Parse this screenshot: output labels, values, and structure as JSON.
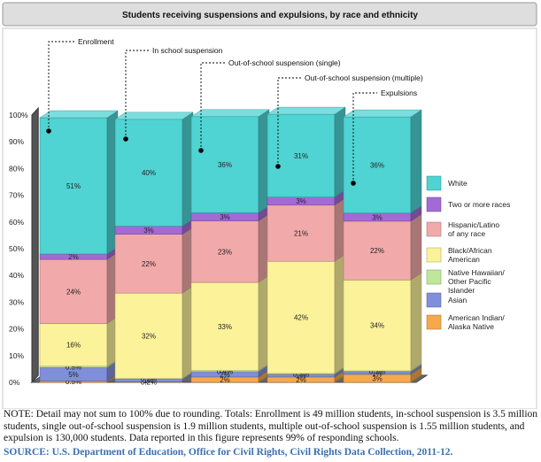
{
  "chart_data": {
    "type": "bar",
    "stacked": true,
    "title": "Students receiving suspensions and expulsions, by race and ethnicity",
    "categories": [
      "Enrollment",
      "In school suspension",
      "Out-of-school suspension (single)",
      "Out-of-school suspension (multiple)",
      "Expulsions"
    ],
    "series": [
      {
        "name": "American Indian/ Alaska Native",
        "color": "#f6a94a",
        "values": [
          0.5,
          0.2,
          2,
          2,
          3
        ],
        "labels": [
          "0.5%",
          "0.2%",
          "2%",
          "2%",
          "3%"
        ]
      },
      {
        "name": "Asian",
        "color": "#7f8fd9",
        "values": [
          5,
          1,
          2,
          1,
          1
        ],
        "labels": [
          "5%",
          "1%",
          "2%",
          "1%",
          "1%"
        ]
      },
      {
        "name": "Native Hawaiian/ Other Pacific Islander",
        "color": "#bfe79a",
        "values": [
          0.5,
          0.2,
          0.4,
          0.3,
          0.3
        ],
        "labels": [
          "0.5%",
          "0.2%",
          "0.4%",
          "0.3%",
          "0.3%"
        ]
      },
      {
        "name": "Black/African American",
        "color": "#fbf29a",
        "values": [
          16,
          32,
          33,
          42,
          34
        ],
        "labels": [
          "16%",
          "32%",
          "33%",
          "42%",
          "34%"
        ]
      },
      {
        "name": "Hispanic/Latino of any race",
        "color": "#f1a9a9",
        "values": [
          24,
          22,
          23,
          21,
          22
        ],
        "labels": [
          "24%",
          "22%",
          "23%",
          "21%",
          "22%"
        ]
      },
      {
        "name": "Two or more races",
        "color": "#a36ad6",
        "values": [
          2,
          3,
          3,
          3,
          3
        ],
        "labels": [
          "2%",
          "3%",
          "3%",
          "3%",
          "3%"
        ]
      },
      {
        "name": "White",
        "color": "#4fd3d3",
        "values": [
          51,
          40,
          36,
          31,
          36
        ],
        "labels": [
          "51%",
          "40%",
          "36%",
          "31%",
          "36%"
        ]
      }
    ],
    "yticks": [
      "0%",
      "10%",
      "20%",
      "30%",
      "40%",
      "50%",
      "60%",
      "70%",
      "80%",
      "90%",
      "100%"
    ],
    "ylim": [
      0,
      100
    ],
    "legend_order": [
      "White",
      "Two or more races",
      "Hispanic/Latino of any race",
      "Black/African American",
      "Native Hawaiian/ Other Pacific Islander",
      "Asian",
      "American Indian/ Alaska Native"
    ],
    "legend_placement": "right"
  },
  "note": "NOTE: Detail may not sum to 100% due to rounding.  Totals: Enrollment is 49 million students, in-school suspension is 3.5 million students, single out-of-school suspension is 1.9 million students, multiple out-of-school suspension is 1.55 million students, and expulsion is 130,000 students.  Data reported in this figure represents 99% of responding schools.",
  "source": "SOURCE: U.S. Department of Education, Office for Civil Rights, Civil Rights Data Collection, 2011-12."
}
